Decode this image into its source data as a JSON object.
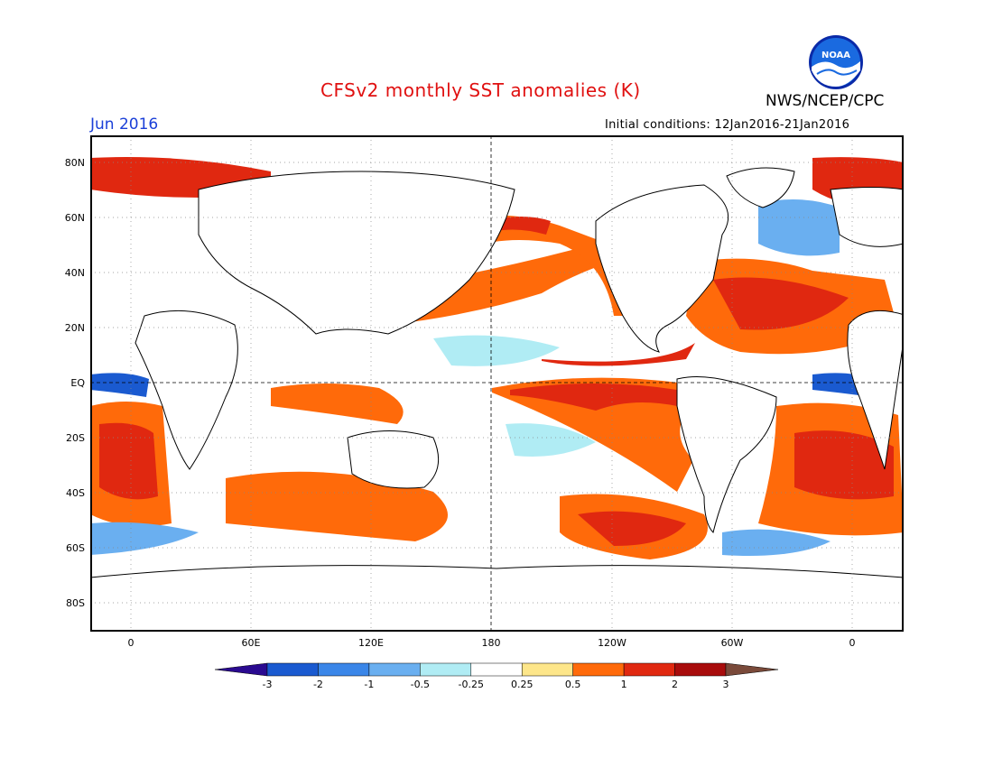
{
  "header": {
    "title": "CFSv2 monthly SST anomalies (K)",
    "organization": "NWS/NCEP/CPC",
    "logo_text": "NOAA",
    "forecast_month": "Jun 2016",
    "initial_conditions": "Initial conditions: 12Jan2016-21Jan2016"
  },
  "axes": {
    "lat_labels": [
      "80N",
      "60N",
      "40N",
      "20N",
      "EQ",
      "20S",
      "40S",
      "60S",
      "80S"
    ],
    "lon_labels": [
      "0",
      "60E",
      "120E",
      "180",
      "120W",
      "60W",
      "0"
    ]
  },
  "colorbar": {
    "tick_labels": [
      "-3",
      "-2",
      "-1",
      "-0.5",
      "-0.25",
      "0.25",
      "0.5",
      "1",
      "2",
      "3"
    ],
    "colors": [
      "#2a0a90",
      "#1a5ad0",
      "#3a86e8",
      "#6aaff0",
      "#b0ecf4",
      "#ffffff",
      "#fde68a",
      "#ff6a0a",
      "#e02810",
      "#a80c0c",
      "#7a4a3a"
    ]
  },
  "colors": {
    "title": "#e01010",
    "month": "#1a3fd8",
    "ocean": "#ffffff",
    "land_outline": "#000000"
  }
}
